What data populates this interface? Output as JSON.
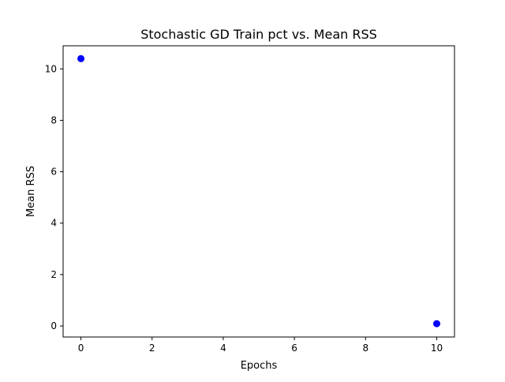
{
  "chart_data": {
    "type": "scatter",
    "title": "Stochastic GD Train pct vs. Mean RSS",
    "xlabel": "Epochs",
    "ylabel": "Mean RSS",
    "x": [
      0,
      10
    ],
    "y": [
      10.4,
      0.09
    ],
    "xlim": [
      -0.5,
      10.5
    ],
    "ylim": [
      -0.43,
      10.9
    ],
    "xticks": [
      0,
      2,
      4,
      6,
      8,
      10
    ],
    "yticks": [
      0,
      2,
      4,
      6,
      8,
      10
    ],
    "grid": false,
    "marker_color": "#0000ff"
  }
}
